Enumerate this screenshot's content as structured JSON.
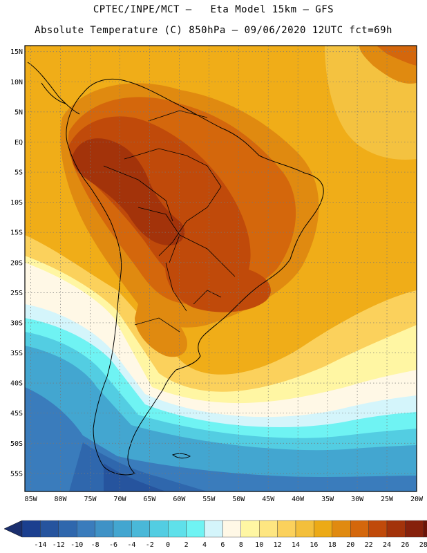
{
  "header": {
    "line1": "CPTEC/INPE/MCT –   Eta Model 15km – GFS",
    "line2": "Absolute Temperature (C) 850hPa – 09/06/2020 12UTC fct=69h"
  },
  "map": {
    "lat_labels": [
      "15N",
      "10N",
      "5N",
      "EQ",
      "5S",
      "10S",
      "15S",
      "20S",
      "25S",
      "30S",
      "35S",
      "40S",
      "45S",
      "50S",
      "55S"
    ],
    "lon_labels": [
      "85W",
      "80W",
      "75W",
      "70W",
      "65W",
      "60W",
      "55W",
      "50W",
      "45W",
      "40W",
      "35W",
      "30W",
      "25W",
      "20W"
    ],
    "lat_range": [
      16,
      -58
    ],
    "lon_range": [
      -86,
      -20
    ]
  },
  "colorbar": {
    "labels": [
      "-14",
      "-12",
      "-10",
      "-8",
      "-6",
      "-4",
      "-2",
      "0",
      "2",
      "4",
      "6",
      "8",
      "10",
      "12",
      "14",
      "16",
      "18",
      "20",
      "22",
      "24",
      "26",
      "28"
    ],
    "colors": [
      "#1b3f8f",
      "#26549e",
      "#2f67ad",
      "#3a7cbc",
      "#3f92c6",
      "#43a6d0",
      "#4ab8d8",
      "#53cde2",
      "#5fe0ea",
      "#6ff3f3",
      "#d4f5fb",
      "#fff8e6",
      "#fff6a3",
      "#fee681",
      "#fbd15c",
      "#f3bf3b",
      "#ecaa16",
      "#e08a10",
      "#d4670c",
      "#c04a0a",
      "#a3330a",
      "#86210c",
      "#6b1408"
    ],
    "arrow_colors": [
      "#1b2f6e",
      "#780e1e"
    ]
  }
}
